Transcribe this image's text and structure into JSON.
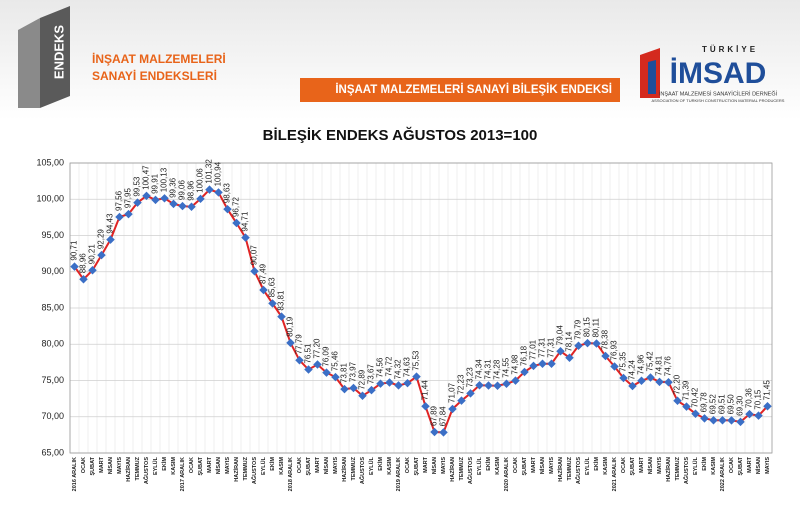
{
  "header": {
    "logo": "ENDEKS",
    "title_line1": "İNŞAAT MALZEMELERİ",
    "title_line2": "SANAYİ ENDEKSLERİ",
    "banner": "İNŞAAT MALZEMELERİ SANAYİ BİLEŞİK ENDEKSİ",
    "org_country": "TÜRKİYE",
    "org_name": "İMSAD",
    "org_sub_tr": "İNŞAAT MALZEMESİ SANAYİCİLERİ DERNEĞİ",
    "org_sub_en": "ASSOCIATION OF TURKISH CONSTRUCTION MATERIAL PRODUCERS"
  },
  "chart_data": {
    "type": "line",
    "title": "BİLEŞİK ENDEKS AĞUSTOS 2013=100",
    "categories": [
      "2016 ARALIK",
      "OCAK",
      "ŞUBAT",
      "MART",
      "NİSAN",
      "MAYIS",
      "HAZİRAN",
      "TEMMUZ",
      "AĞUSTOS",
      "EYLÜL",
      "EKİM",
      "KASIM",
      "2017 ARALIK",
      "OCAK",
      "ŞUBAT",
      "MART",
      "NİSAN",
      "MAYIS",
      "HAZİRAN",
      "TEMMUZ",
      "AĞUSTOS",
      "EYLÜL",
      "EKİM",
      "KASIM",
      "2018 ARALIK",
      "OCAK",
      "ŞUBAT",
      "MART",
      "NİSAN",
      "MAYIS",
      "HAZİRAN",
      "TEMMUZ",
      "AĞUSTOS",
      "EYLÜL",
      "EKİM",
      "KASIM",
      "2019 ARALIK",
      "OCAK",
      "ŞUBAT",
      "MART",
      "NİSAN",
      "MAYIS",
      "HAZİRAN",
      "TEMMUZ",
      "AĞUSTOS",
      "EYLÜL",
      "EKİM",
      "KASIM",
      "2020 ARALIK",
      "OCAK",
      "ŞUBAT",
      "MART",
      "NİSAN",
      "MAYIS",
      "HAZİRAN",
      "TEMMUZ",
      "AĞUSTOS",
      "EYLÜL",
      "EKİM",
      "KASIM",
      "2021 ARALIK",
      "OCAK",
      "ŞUBAT",
      "MART",
      "NİSAN",
      "MAYIS",
      "HAZİRAN",
      "TEMMUZ",
      "AĞUSTOS",
      "EYLÜL",
      "EKİM",
      "KASIM",
      "2022 ARALIK",
      "OCAK",
      "ŞUBAT",
      "MART",
      "NİSAN",
      "MAYIS"
    ],
    "values": [
      90.71,
      88.96,
      90.21,
      92.29,
      94.43,
      97.56,
      97.95,
      99.53,
      100.47,
      99.91,
      100.13,
      99.36,
      99.06,
      98.96,
      100.06,
      101.32,
      100.94,
      98.63,
      96.72,
      94.71,
      90.07,
      87.49,
      85.63,
      83.81,
      80.19,
      77.79,
      76.51,
      77.2,
      76.09,
      75.46,
      73.81,
      73.97,
      72.89,
      73.67,
      74.56,
      74.72,
      74.32,
      74.63,
      75.53,
      71.44,
      67.89,
      67.84,
      71.07,
      72.23,
      73.23,
      74.34,
      74.31,
      74.28,
      74.55,
      74.98,
      76.18,
      77.01,
      77.31,
      77.31,
      79.04,
      78.14,
      79.79,
      80.15,
      80.11,
      78.38,
      76.93,
      75.35,
      74.24,
      74.96,
      75.42,
      74.81,
      74.76,
      72.2,
      71.39,
      70.42,
      69.78,
      69.52,
      69.51,
      69.5,
      69.3,
      70.36,
      70.15,
      71.45
    ],
    "value_labels": [
      "90,71",
      "88,96",
      "90,21",
      "92,29",
      "94,43",
      "97,56",
      "97,95",
      "99,53",
      "100,47",
      "99,91",
      "100,13",
      "99,36",
      "99,06",
      "98,96",
      "100,06",
      "101,32",
      "100,94",
      "98,63",
      "96,72",
      "94,71",
      "90,07",
      "87,49",
      "85,63",
      "83,81",
      "80,19",
      "77,79",
      "76,51",
      "77,20",
      "76,09",
      "75,46",
      "73,81",
      "73,97",
      "72,89",
      "73,67",
      "74,56",
      "74,72",
      "74,32",
      "74,63",
      "75,53",
      "71,44",
      "67,89",
      "67,84",
      "71,07",
      "72,23",
      "73,23",
      "74,34",
      "74,31",
      "74,28",
      "74,55",
      "74,98",
      "76,18",
      "77,01",
      "77,31",
      "77,31",
      "79,04",
      "78,14",
      "79,79",
      "80,15",
      "80,11",
      "78,38",
      "76,93",
      "75,35",
      "74,24",
      "74,96",
      "75,42",
      "74,81",
      "74,76",
      "72,20",
      "71,39",
      "70,42",
      "69,78",
      "69,52",
      "69,51",
      "69,50",
      "69,30",
      "70,36",
      "70,15",
      "71,45"
    ],
    "color": "#e02424",
    "marker_color": "#3b6fc6",
    "ylim": [
      65,
      105
    ],
    "yticks": [
      {
        "value": 65,
        "label": "65,00"
      },
      {
        "value": 70,
        "label": "70,00"
      },
      {
        "value": 75,
        "label": "75,00"
      },
      {
        "value": 80,
        "label": "80,00"
      },
      {
        "value": 85,
        "label": "85,00"
      },
      {
        "value": 90,
        "label": "90,00"
      },
      {
        "value": 95,
        "label": "95,00"
      },
      {
        "value": 100,
        "label": "100,00"
      },
      {
        "value": 105,
        "label": "105,00"
      }
    ],
    "grid": true
  }
}
